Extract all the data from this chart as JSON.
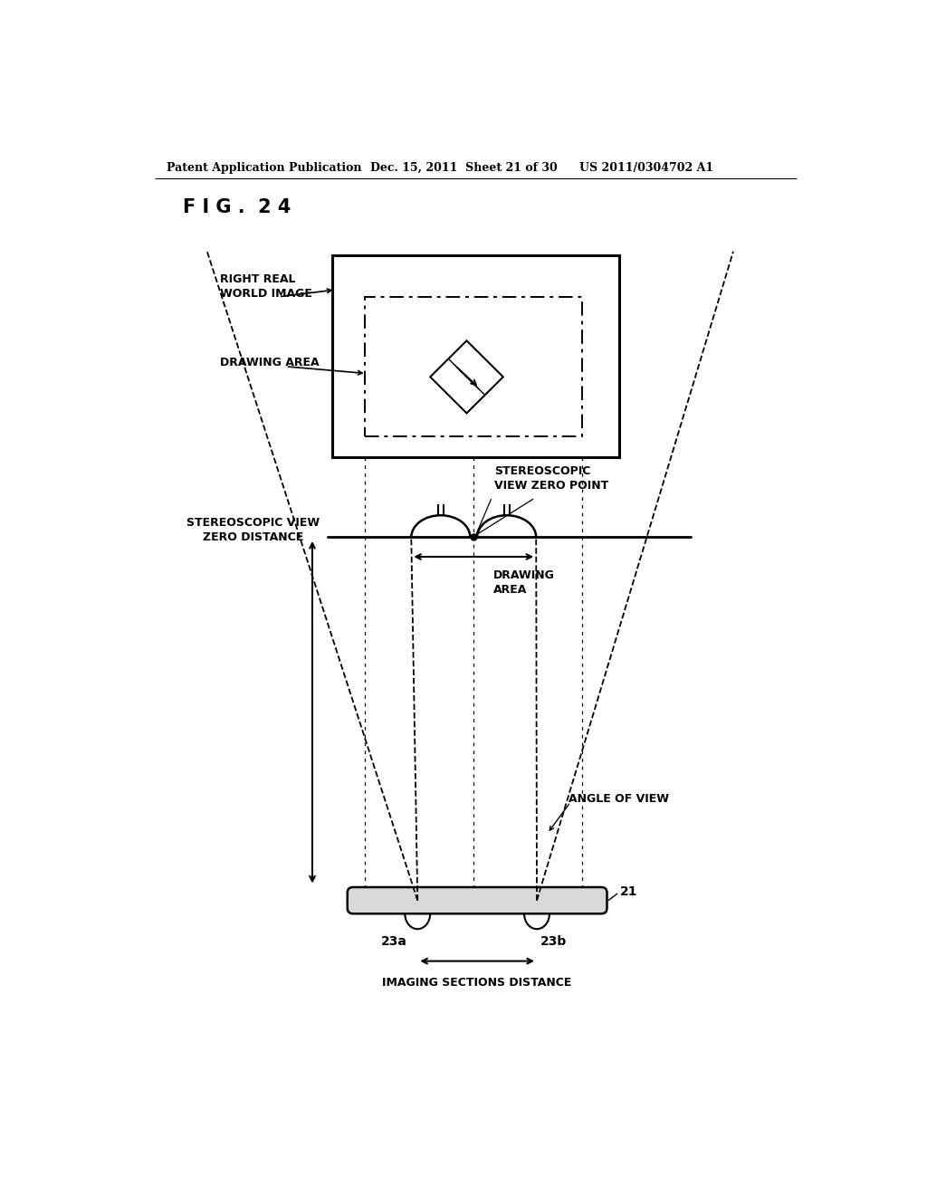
{
  "header_left": "Patent Application Publication",
  "header_mid": "Dec. 15, 2011  Sheet 21 of 30",
  "header_right": "US 2011/0304702 A1",
  "fig_label": "F I G .  2 4",
  "bg_color": "#ffffff",
  "line_color": "#000000",
  "labels": {
    "right_real_world_image": "RIGHT REAL\nWORLD IMAGE",
    "drawing_area_top": "DRAWING AREA",
    "stereoscopic_view_zero_point": "STEREOSCOPIC\nVIEW ZERO POINT",
    "stereoscopic_view_zero_distance": "STEREOSCOPIC VIEW\nZERO DISTANCE",
    "drawing_area_bottom": "DRAWING\nAREA",
    "angle_of_view": "ANGLE OF VIEW",
    "imaging_sections_distance": "IMAGING SECTIONS DISTANCE",
    "label_21": "21",
    "label_23a": "23a",
    "label_23b": "23b"
  }
}
